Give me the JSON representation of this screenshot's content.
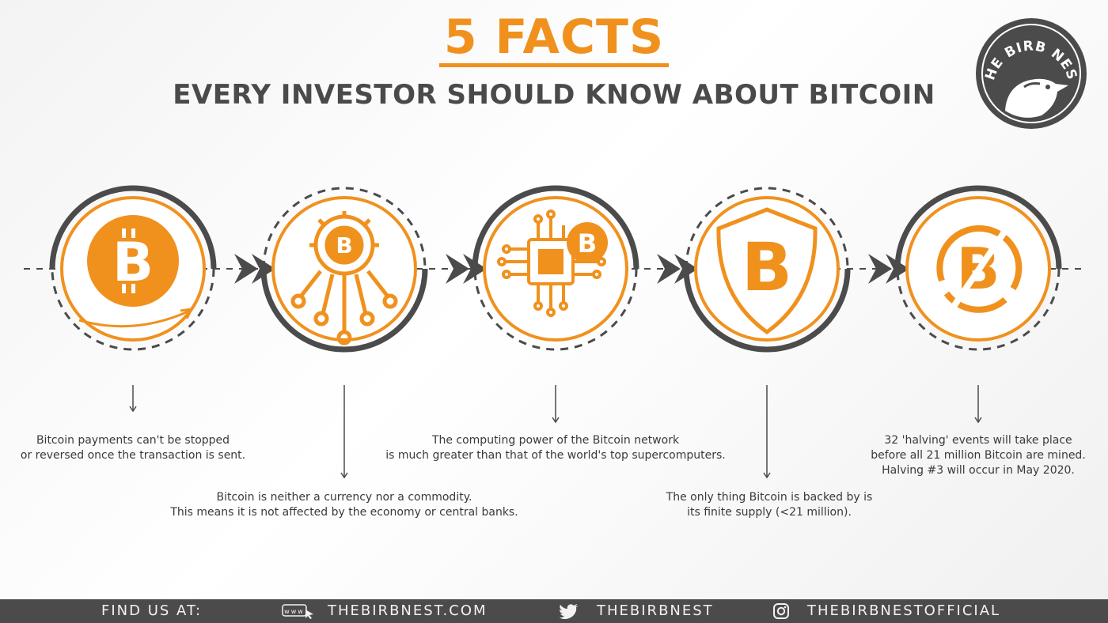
{
  "header": {
    "title": "5 FACTS",
    "subtitle": "EVERY INVESTOR SHOULD KNOW ABOUT BITCOIN"
  },
  "logo": {
    "text": "THE BIRB NEST",
    "icon": "bird-icon"
  },
  "colors": {
    "accent": "#f0911e",
    "dark": "#4b4b4b",
    "text": "#3c3c3c"
  },
  "facts": [
    {
      "icon": "bitcoin-coin-icon",
      "lines": [
        "Bitcoin payments can't be stopped",
        "or reversed once the transaction is sent."
      ]
    },
    {
      "icon": "bitcoin-gear-network-icon",
      "lines": [
        "Bitcoin is neither a currency nor a commodity.",
        "This means it is not affected by the economy or central banks."
      ]
    },
    {
      "icon": "bitcoin-chip-icon",
      "lines": [
        "The computing power of the Bitcoin network",
        "is much greater than that of the world's top supercomputers."
      ]
    },
    {
      "icon": "bitcoin-shield-icon",
      "lines": [
        "The only thing Bitcoin is backed by is",
        "its finite supply (<21 million)."
      ]
    },
    {
      "icon": "bitcoin-halving-icon",
      "lines": [
        "32 'halving' events will take place",
        "before all 21 million Bitcoin are mined.",
        "Halving #3 will occur in May 2020."
      ]
    }
  ],
  "footer": {
    "label": "FIND US AT:",
    "website": "THEBIRBNEST.COM",
    "twitter": "THEBIRBNEST",
    "instagram": "THEBIRBNESTOFFICIAL"
  }
}
